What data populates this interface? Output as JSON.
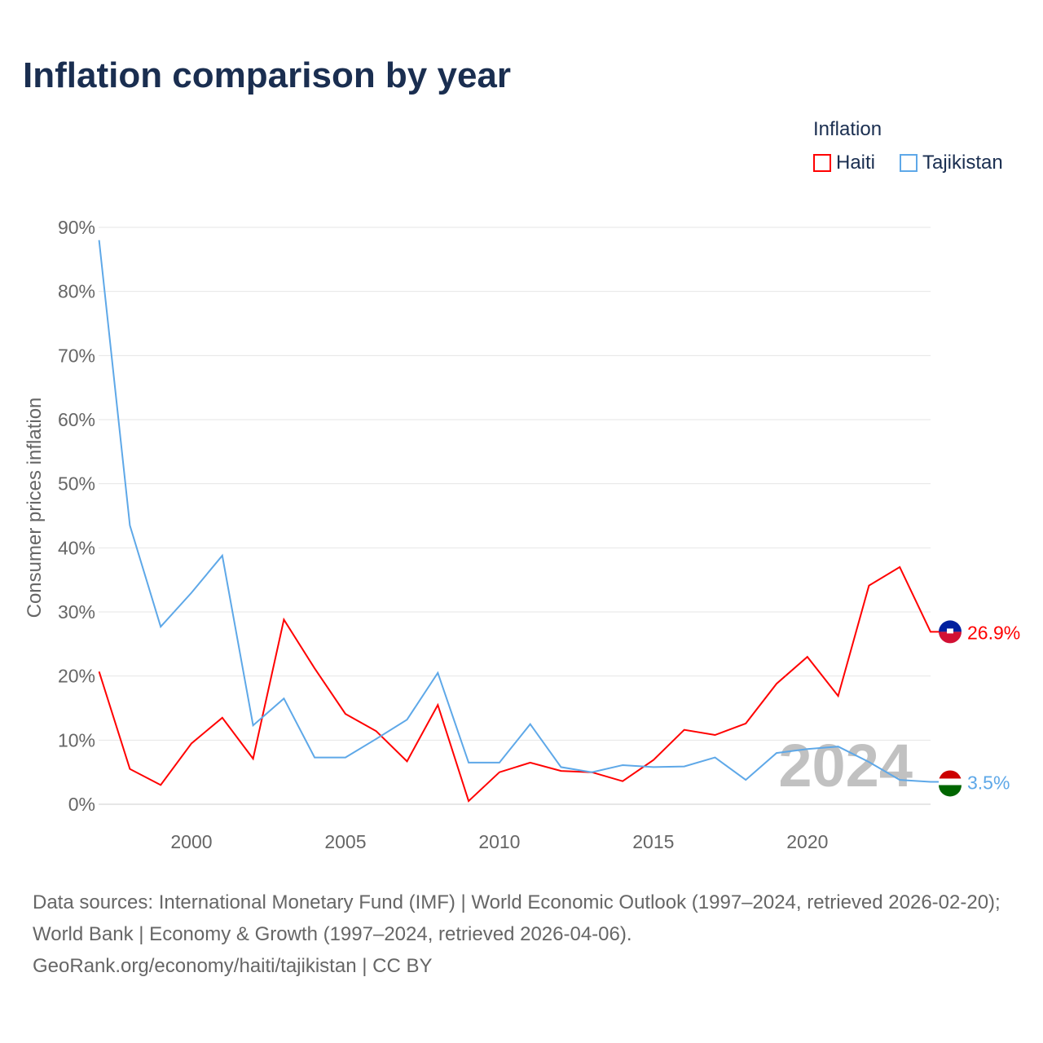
{
  "title": "Inflation comparison by year",
  "legend": {
    "title": "Inflation",
    "items": [
      {
        "label": "Haiti",
        "color": "#ff0000"
      },
      {
        "label": "Tajikistan",
        "color": "#5ea8e8"
      }
    ]
  },
  "watermark_year": "2024",
  "footer": {
    "sources": "Data sources: International Monetary Fund (IMF) | World Economic Outlook (1997–2024, retrieved 2026-02-20); World Bank | Economy & Growth (1997–2024, retrieved 2026-04-06).",
    "credit": "GeoRank.org/economy/haiti/tajikistan | CC BY"
  },
  "chart_data": {
    "type": "line",
    "title": "Inflation comparison by year",
    "ylabel": "Consumer prices inflation",
    "xlabel": "",
    "xlim": [
      1997,
      2024
    ],
    "ylim": [
      0,
      90
    ],
    "yticks": [
      "0%",
      "10%",
      "20%",
      "30%",
      "40%",
      "50%",
      "60%",
      "70%",
      "80%",
      "90%"
    ],
    "xticks": [
      "2000",
      "2005",
      "2010",
      "2015",
      "2020"
    ],
    "x": [
      1997,
      1998,
      1999,
      2000,
      2001,
      2002,
      2003,
      2004,
      2005,
      2006,
      2007,
      2008,
      2009,
      2010,
      2011,
      2012,
      2013,
      2014,
      2015,
      2016,
      2017,
      2018,
      2019,
      2020,
      2021,
      2022,
      2023,
      2024
    ],
    "series": [
      {
        "name": "Haiti",
        "color": "#ff0000",
        "end_label": "26.9%",
        "values": [
          20.7,
          5.5,
          3.0,
          9.5,
          13.5,
          7.1,
          28.8,
          21.2,
          14.1,
          11.4,
          6.7,
          15.5,
          0.5,
          5.0,
          6.5,
          5.2,
          5.0,
          3.6,
          6.9,
          11.6,
          10.8,
          12.6,
          18.8,
          23.0,
          16.9,
          34.1,
          37.0,
          26.9
        ]
      },
      {
        "name": "Tajikistan",
        "color": "#5ea8e8",
        "end_label": "3.5%",
        "values": [
          88.0,
          43.5,
          27.7,
          33.0,
          38.8,
          12.3,
          16.5,
          7.3,
          7.3,
          10.2,
          13.2,
          20.5,
          6.5,
          6.5,
          12.5,
          5.8,
          5.0,
          6.1,
          5.8,
          5.9,
          7.3,
          3.8,
          8.0,
          8.6,
          9.0,
          6.6,
          3.8,
          3.5
        ]
      }
    ],
    "grid": true,
    "legend_position": "top-right"
  }
}
